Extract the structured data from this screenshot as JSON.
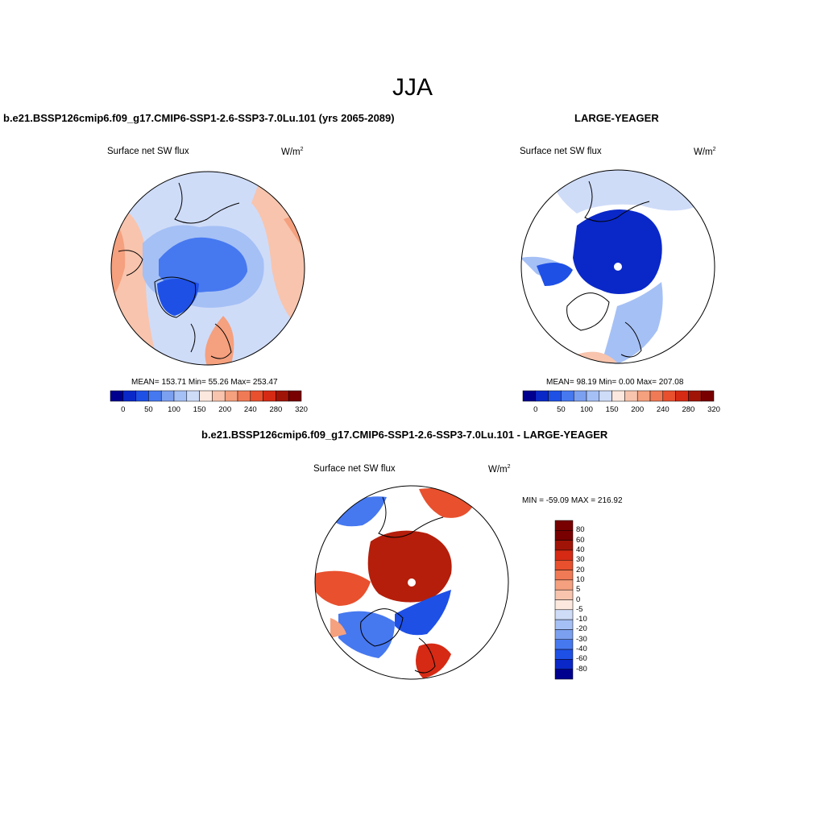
{
  "title": "JJA",
  "panels": {
    "top_left": {
      "title": "b.e21.BSSP126cmip6.f09_g17.CMIP6-SSP1-2.6-SSP3-7.0Lu.101 (yrs 2065-2089)",
      "variable": "Surface net SW flux",
      "units": "W/m",
      "units_sup": "2",
      "stats": "MEAN= 153.71  Min=  55.26  Max= 253.47"
    },
    "top_right": {
      "title": "LARGE-YEAGER",
      "variable": "Surface net SW flux",
      "units": "W/m",
      "units_sup": "2",
      "stats": "MEAN=  98.19  Min=   0.00  Max= 207.08"
    },
    "bottom": {
      "title": "b.e21.BSSP126cmip6.f09_g17.CMIP6-SSP1-2.6-SSP3-7.0Lu.101 - LARGE-YEAGER",
      "variable": "Surface net SW flux",
      "units": "W/m",
      "units_sup": "2",
      "minmax": "MIN = -59.09 MAX = 216.92"
    }
  },
  "colorbar_abs": {
    "colors": [
      "#00008f",
      "#0a28c8",
      "#1e50e6",
      "#4678f0",
      "#7ca0f0",
      "#a5c0f5",
      "#cfdcf8",
      "#fce8de",
      "#f8c4ad",
      "#f5a07e",
      "#f07a55",
      "#e8502e",
      "#d62a14",
      "#a01408",
      "#780000"
    ],
    "tick_labels": [
      "0",
      "50",
      "100",
      "150",
      "200",
      "240",
      "280",
      "320"
    ]
  },
  "colorbar_diff": {
    "colors": [
      "#780000",
      "#a01408",
      "#d62a14",
      "#e8502e",
      "#f07a55",
      "#f5a07e",
      "#f8c4ad",
      "#fce8de",
      "#cfdcf8",
      "#a5c0f5",
      "#7ca0f0",
      "#4678f0",
      "#1e50e6",
      "#0a28c8",
      "#00008f"
    ],
    "tick_labels": [
      "80",
      "60",
      "40",
      "30",
      "20",
      "10",
      "5",
      "0",
      "-5",
      "-10",
      "-20",
      "-30",
      "-40",
      "-60",
      "-80"
    ]
  },
  "map_fill_colors": {
    "ocean_blue": "#4678f0",
    "light_blue": "#a5c0f5",
    "pale_blue": "#cfdcf8",
    "peach": "#f8c4ad",
    "salmon": "#f5a07e",
    "deep_blue": "#0a28c8",
    "dark_red": "#b41e0a",
    "red": "#e8502e"
  }
}
